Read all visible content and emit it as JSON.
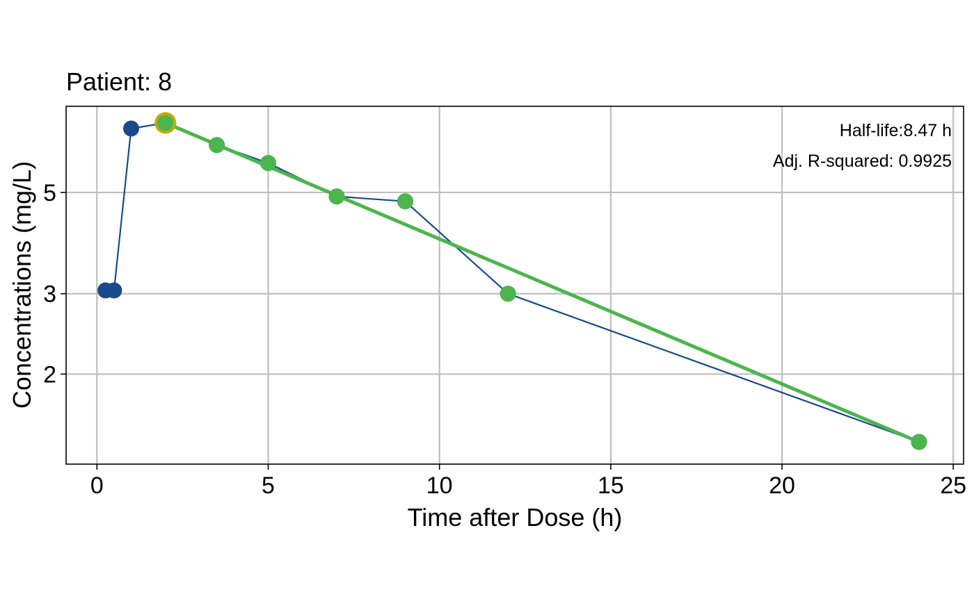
{
  "chart_data": {
    "type": "scatter",
    "title": "Patient: 8",
    "xlabel": "Time after Dose (h)",
    "ylabel": "Concentrations (mg/L)",
    "y_scale": "log",
    "xlim": [
      -0.9,
      25.3
    ],
    "ylim": [
      1.27,
      7.72
    ],
    "x_ticks": [
      0,
      5,
      10,
      15,
      20,
      25
    ],
    "x_tick_labels": [
      "0",
      "5",
      "10",
      "15",
      "20",
      "25"
    ],
    "y_ticks": [
      2,
      3,
      5
    ],
    "y_tick_labels": [
      "2",
      "3",
      "5"
    ],
    "grid": true,
    "colors": {
      "observed": "#184a8c",
      "included": "#4cb54e",
      "cmax_ring": "#c9a70a",
      "grid": "#bebebe"
    },
    "observed": {
      "x": [
        0.25,
        0.5,
        1,
        2,
        3.5,
        5,
        7,
        9,
        12,
        24
      ],
      "y": [
        3.05,
        3.05,
        6.9,
        7.1,
        6.35,
        5.8,
        4.9,
        4.78,
        3.0,
        1.42
      ]
    },
    "included": {
      "x": [
        2,
        3.5,
        5,
        7,
        9,
        12,
        24
      ],
      "y": [
        7.1,
        6.35,
        5.8,
        4.9,
        4.78,
        3.0,
        1.42
      ]
    },
    "cmax_point": {
      "x": 2,
      "y": 7.1
    },
    "regression_line": {
      "x": [
        2,
        24
      ],
      "y": [
        7.1,
        1.42
      ]
    },
    "annotations": {
      "half_life": "Half-life:8.47 h",
      "adj_r_squared": "Adj. R-squared: 0.9925"
    }
  }
}
